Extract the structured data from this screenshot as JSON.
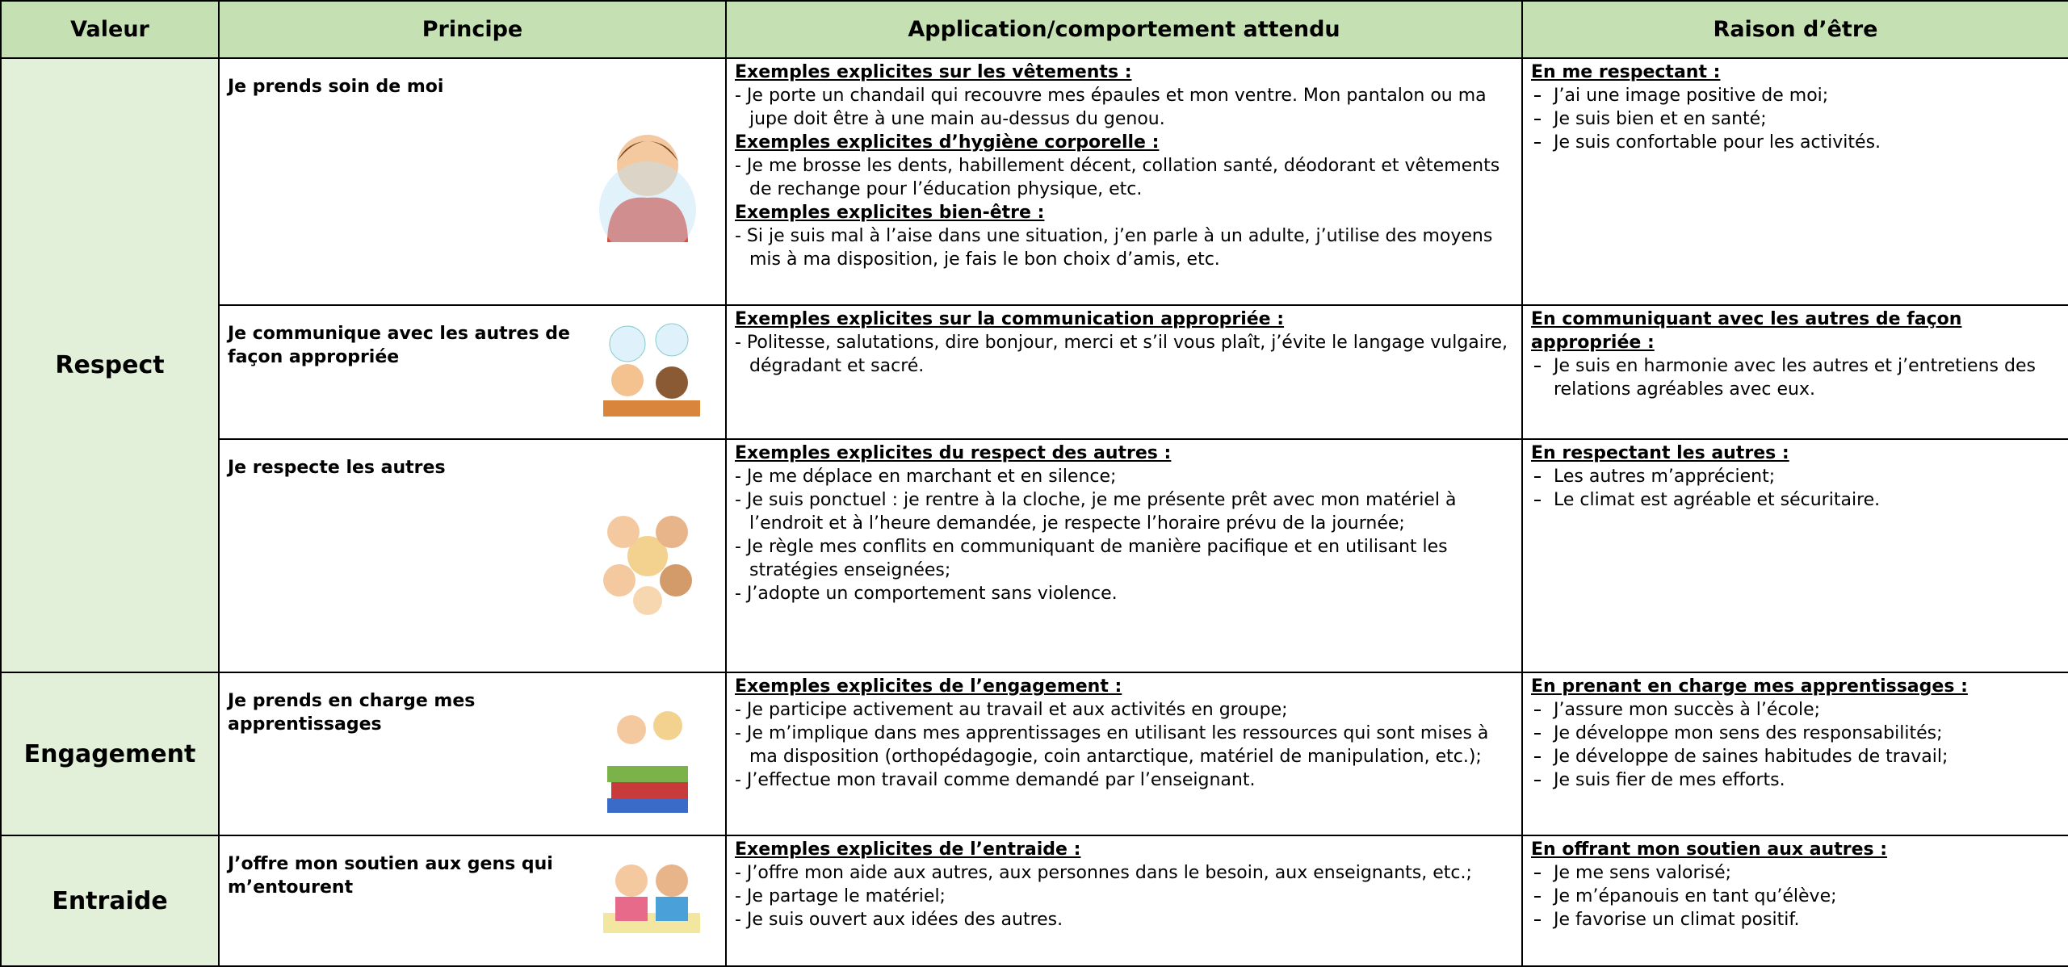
{
  "header": [
    "Valeur",
    "Principe",
    "Application/comportement attendu",
    "Raison d’être"
  ],
  "groups": [
    {
      "valeur": "Respect",
      "rows": [
        {
          "principe": "Je prends soin de moi",
          "application": [
            {
              "heading": "Exemples explicites sur les vêtements :",
              "items": [
                "- Je porte un chandail qui recouvre mes épaules et mon ventre. Mon pantalon ou ma jupe doit être à une main au-dessus du genou."
              ]
            },
            {
              "heading": "Exemples explicites d’hygiène corporelle :",
              "items": [
                "- Je me brosse les dents, habillement décent, collation santé, déodorant et vêtements de rechange pour l’éducation physique, etc."
              ]
            },
            {
              "heading": "Exemples explicites bien-être :",
              "items": [
                "- Si je suis mal à l’aise dans une situation, j’en parle à un adulte, j’utilise des moyens mis à ma disposition, je fais le bon choix d’amis, etc."
              ]
            }
          ],
          "raison": {
            "heading": "En me respectant :",
            "items": [
              "J’ai une image positive de moi;",
              "Je suis bien et en santé;",
              "Je suis confortable pour les activités."
            ]
          }
        },
        {
          "principe": "Je communique avec les autres de façon appropriée",
          "application": [
            {
              "heading": "Exemples explicites sur la communication appropriée :",
              "items": [
                "- Politesse, salutations, dire bonjour, merci et s’il vous plaît, j’évite le langage vulgaire, dégradant et sacré."
              ]
            }
          ],
          "raison": {
            "heading": "En communiquant avec les autres de façon appropriée :",
            "items": [
              "Je suis en harmonie avec les autres et j’entretiens des relations agréables avec eux."
            ]
          }
        },
        {
          "principe": "Je respecte les autres",
          "application": [
            {
              "heading": "Exemples explicites du respect des autres :",
              "items": [
                "- Je me déplace en marchant et en silence;",
                "- Je suis ponctuel : je rentre à la cloche, je me présente prêt avec mon matériel à l’endroit et à l’heure demandée, je respecte l’horaire prévu de la journée;",
                "- Je règle mes conflits en communiquant de manière pacifique et en utilisant les stratégies enseignées;",
                "- J’adopte un comportement sans violence."
              ]
            }
          ],
          "raison": {
            "heading": "En respectant les autres :",
            "items": [
              "Les autres m’apprécient;",
              "Le climat est agréable et sécuritaire."
            ]
          }
        }
      ]
    },
    {
      "valeur": "Engagement",
      "rows": [
        {
          "principe": "Je prends en charge mes apprentissages",
          "application": [
            {
              "heading": "Exemples explicites de l’engagement :",
              "items": [
                "- Je participe activement au travail et aux activités en groupe;",
                "- Je m’implique dans mes apprentissages en utilisant les ressources qui sont mises à ma disposition (orthopédagogie, coin antarctique, matériel de manipulation, etc.);",
                "- J’effectue mon travail comme demandé par l’enseignant."
              ]
            }
          ],
          "raison": {
            "heading": "En prenant en charge mes apprentissages :",
            "items": [
              "J’assure mon succès à l’école;",
              "Je développe mon sens des responsabilités;",
              "Je développe de saines habitudes de travail;",
              "Je suis fier de mes efforts."
            ]
          }
        }
      ]
    },
    {
      "valeur": "Entraide",
      "rows": [
        {
          "principe": "J’offre mon soutien aux gens qui m’entourent",
          "application": [
            {
              "heading": "Exemples explicites de l’entraide :",
              "items": [
                "- J’offre mon aide aux autres, aux personnes dans le besoin, aux enseignants, etc.;",
                "- Je partage le matériel;",
                "- Je suis ouvert aux idées des autres."
              ]
            }
          ],
          "raison": {
            "heading": "En offrant mon soutien aux autres :",
            "items": [
              "Je me sens valorisé;",
              "Je m’épanouis en tant qu’élève;",
              "Je favorise un climat positif."
            ]
          }
        }
      ]
    }
  ]
}
